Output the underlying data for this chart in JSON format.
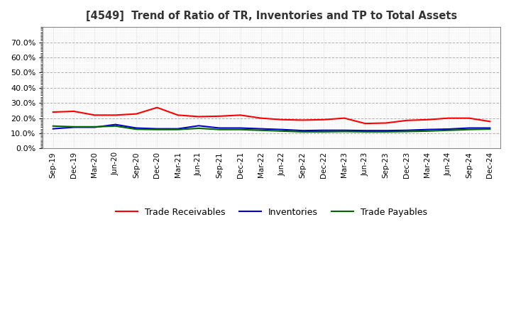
{
  "title": "[4549]  Trend of Ratio of TR, Inventories and TP to Total Assets",
  "x_labels": [
    "Sep-19",
    "Dec-19",
    "Mar-20",
    "Jun-20",
    "Sep-20",
    "Dec-20",
    "Mar-21",
    "Jun-21",
    "Sep-21",
    "Dec-21",
    "Mar-22",
    "Jun-22",
    "Sep-22",
    "Dec-22",
    "Mar-23",
    "Jun-23",
    "Sep-23",
    "Dec-23",
    "Mar-24",
    "Jun-24",
    "Sep-24",
    "Dec-24"
  ],
  "trade_receivables": [
    0.24,
    0.245,
    0.22,
    0.22,
    0.228,
    0.27,
    0.22,
    0.21,
    0.213,
    0.22,
    0.2,
    0.19,
    0.187,
    0.19,
    0.2,
    0.165,
    0.168,
    0.185,
    0.19,
    0.2,
    0.2,
    0.178
  ],
  "inventories": [
    0.13,
    0.14,
    0.14,
    0.158,
    0.135,
    0.13,
    0.13,
    0.15,
    0.135,
    0.135,
    0.13,
    0.125,
    0.118,
    0.12,
    0.12,
    0.118,
    0.118,
    0.12,
    0.125,
    0.128,
    0.135,
    0.135
  ],
  "trade_payables": [
    0.148,
    0.143,
    0.143,
    0.148,
    0.127,
    0.125,
    0.125,
    0.133,
    0.125,
    0.125,
    0.12,
    0.115,
    0.11,
    0.11,
    0.112,
    0.11,
    0.11,
    0.112,
    0.115,
    0.12,
    0.125,
    0.128
  ],
  "ylim": [
    0.0,
    0.8
  ],
  "yticks": [
    0.0,
    0.1,
    0.2,
    0.3,
    0.4,
    0.5,
    0.6,
    0.7
  ],
  "line_color_tr": "#FF0000",
  "line_color_inv": "#0000CC",
  "line_color_tp": "#006600",
  "grid_color_major": "#999999",
  "grid_color_minor": "#bbbbbb",
  "background_color": "#FFFFFF",
  "title_color": "#333333",
  "legend_labels": [
    "Trade Receivables",
    "Inventories",
    "Trade Payables"
  ]
}
